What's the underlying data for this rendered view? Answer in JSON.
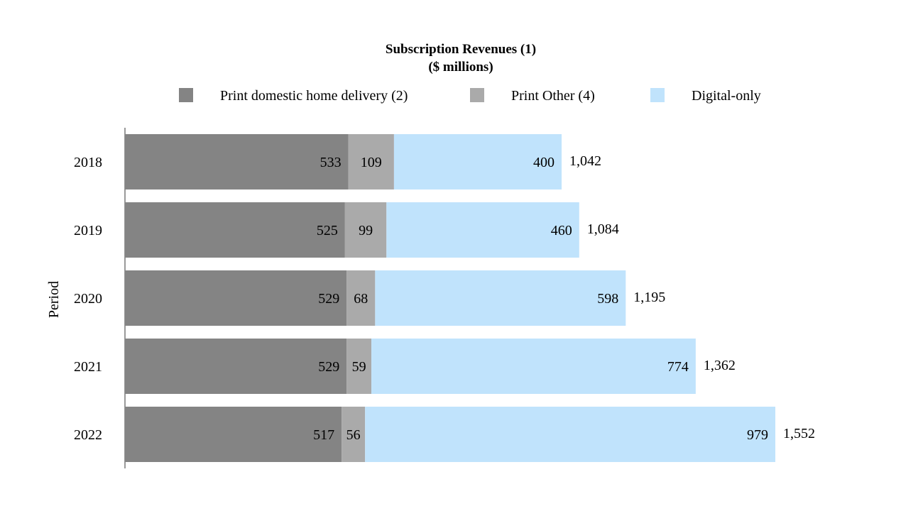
{
  "chart_data": {
    "type": "bar",
    "orientation": "horizontal",
    "stacked": true,
    "title": "Subscription Revenues (1)",
    "subtitle": "($ millions)",
    "ylabel": "Period",
    "xlabel": "",
    "categories": [
      "2018",
      "2019",
      "2020",
      "2021",
      "2022"
    ],
    "series": [
      {
        "name": "Print domestic home delivery (2)",
        "values": [
          533,
          525,
          529,
          529,
          517
        ],
        "color": "#848484"
      },
      {
        "name": "Print Other (4)",
        "values": [
          109,
          99,
          68,
          59,
          56
        ],
        "color": "#aaaaaa"
      },
      {
        "name": "Digital-only",
        "values": [
          400,
          460,
          598,
          774,
          979
        ],
        "color": "#c0e3fc"
      }
    ],
    "totals": [
      "1,042",
      "1,084",
      "1,195",
      "1,362",
      "1,552"
    ],
    "xlim": [
      0,
      1552
    ],
    "grid": false,
    "legend_position": "top"
  }
}
